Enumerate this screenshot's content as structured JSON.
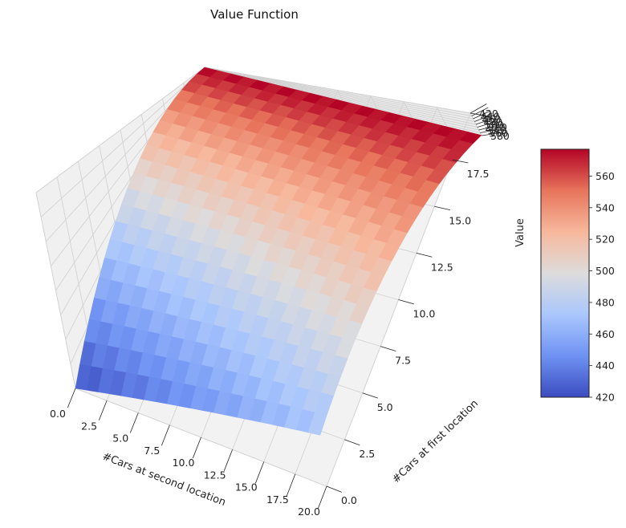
{
  "chart_data": {
    "type": "surface3d",
    "title": "Value Function",
    "xlabel": "#Cars at second location",
    "ylabel": "#Cars at first location",
    "zlabel": "Value",
    "x_range": [
      0,
      20
    ],
    "y_range": [
      0,
      20
    ],
    "z_range": [
      420,
      580
    ],
    "x_ticks": [
      "0.0",
      "2.5",
      "5.0",
      "7.5",
      "10.0",
      "12.5",
      "15.0",
      "17.5",
      "20.0"
    ],
    "y_ticks": [
      "0.0",
      "2.5",
      "5.0",
      "7.5",
      "10.0",
      "12.5",
      "15.0",
      "17.5",
      "20.0"
    ],
    "z_ticks": [
      "420",
      "440",
      "460",
      "480",
      "500",
      "520",
      "540",
      "560",
      "580"
    ],
    "corner_values": {
      "x0_y0": 420,
      "x20_y0": 470,
      "x0_y20": 575,
      "x20_y20": 577
    },
    "colormap": "coolwarm",
    "colormap_stops": [
      "#3b4cc0",
      "#6f92f3",
      "#aac7fd",
      "#dddcdc",
      "#f7b89c",
      "#e7745b",
      "#b40426"
    ],
    "colorbar": {
      "range": [
        420,
        577
      ],
      "ticks": [
        "420",
        "440",
        "460",
        "480",
        "500",
        "520",
        "540",
        "560"
      ]
    },
    "grid": true
  }
}
